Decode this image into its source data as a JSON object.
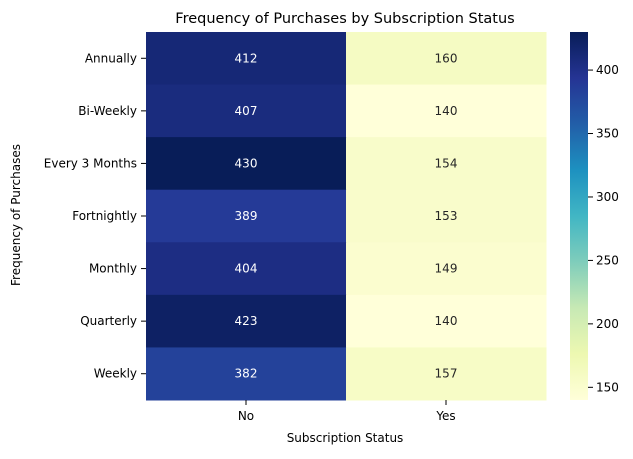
{
  "chart_data": {
    "type": "heatmap",
    "title": "Frequency of Purchases by Subscription Status",
    "xlabel": "Subscription Status",
    "ylabel": "Frequency of Purchases",
    "x_categories": [
      "No",
      "Yes"
    ],
    "y_categories": [
      "Annually",
      "Bi-Weekly",
      "Every 3 Months",
      "Fortnightly",
      "Monthly",
      "Quarterly",
      "Weekly"
    ],
    "values": [
      [
        412,
        160
      ],
      [
        407,
        140
      ],
      [
        430,
        154
      ],
      [
        389,
        153
      ],
      [
        404,
        149
      ],
      [
        423,
        140
      ],
      [
        382,
        157
      ]
    ],
    "colorbar": {
      "colormap": "YlGnBu",
      "range": [
        140,
        430
      ],
      "ticks": [
        150,
        200,
        250,
        300,
        350,
        400
      ]
    },
    "annotations": true,
    "grid": false
  }
}
